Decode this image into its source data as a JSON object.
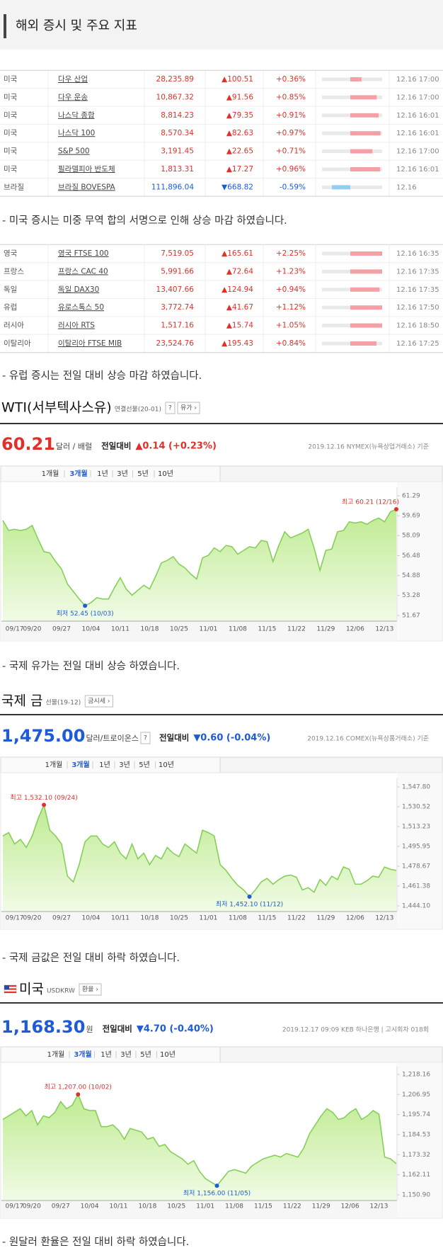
{
  "header": {
    "title": "해외 증시 및 주요 지표"
  },
  "tables": [
    {
      "rows": [
        {
          "country": "미국",
          "name": "다우 산업",
          "value": "28,235.89",
          "change": "▲100.51",
          "pct": "+0.36%",
          "time": "12.16 17:00"
        },
        {
          "country": "미국",
          "name": "다우 운송",
          "value": "10,867.32",
          "change": "▲91.56",
          "pct": "+0.85%",
          "time": "12.16 17:00"
        },
        {
          "country": "미국",
          "name": "나스닥 종합",
          "value": "8,814.23",
          "change": "▲79.35",
          "pct": "+0.91%",
          "time": "12.16 16:01"
        },
        {
          "country": "미국",
          "name": "나스닥 100",
          "value": "8,570.34",
          "change": "▲82.63",
          "pct": "+0.97%",
          "time": "12.16 16:01"
        },
        {
          "country": "미국",
          "name": "S&P 500",
          "value": "3,191.45",
          "change": "▲22.65",
          "pct": "+0.71%",
          "time": "12.16 17:00"
        },
        {
          "country": "미국",
          "name": "필라델피아 반도체",
          "value": "1,813.31",
          "change": "▲17.27",
          "pct": "+0.96%",
          "time": "12.16 16:01"
        },
        {
          "country": "브라질",
          "name": "브라질 BOVESPA",
          "value": "111,896.04",
          "change": "▼668.82",
          "pct": "-0.59%",
          "time": "12.16"
        }
      ]
    },
    {
      "rows": [
        {
          "country": "영국",
          "name": "영국 FTSE 100",
          "value": "7,519.05",
          "change": "▲165.61",
          "pct": "+2.25%",
          "time": "12.16 16:35"
        },
        {
          "country": "프랑스",
          "name": "프랑스 CAC 40",
          "value": "5,991.66",
          "change": "▲72.64",
          "pct": "+1.23%",
          "time": "12.16 17:35"
        },
        {
          "country": "독일",
          "name": "독일 DAX30",
          "value": "13,407.66",
          "change": "▲124.94",
          "pct": "+0.94%",
          "time": "12.16 17:35"
        },
        {
          "country": "유럽",
          "name": "유로스톡스 50",
          "value": "3,772.74",
          "change": "▲41.67",
          "pct": "+1.12%",
          "time": "12.16 17:50"
        },
        {
          "country": "러시아",
          "name": "러시아 RTS",
          "value": "1,517.16",
          "change": "▲15.74",
          "pct": "+1.05%",
          "time": "12.16 18:50"
        },
        {
          "country": "이탈리아",
          "name": "이탈리아 FTSE MIB",
          "value": "23,524.76",
          "change": "▲195.43",
          "pct": "+0.84%",
          "time": "12.16 17:25"
        }
      ]
    }
  ],
  "notes": [
    "- 미국 증시는 미중 무역 합의 서명으로 인해 상승 마감 하였습니다.",
    "- 유럽 증시는 전일 대비 상승 마감 하였습니다.",
    "- 국제 유가는 전일 대비 상승 하였습니다.",
    "- 국제 금값은 전일 대비 하락 하였습니다.",
    "- 원달러 환율은 전일 대비 하락 하였습니다."
  ],
  "charts": [
    {
      "type": "line",
      "title": "WTI(서부텍사스유)",
      "subtitle": "연결선물(20-01)",
      "help": "?",
      "button": "유가 ›",
      "price": "60.21",
      "unit": "달러 / 배럴",
      "change_label": "전일대비",
      "change": "▲0.14 (+0.23%)",
      "price_color": "#e0302a",
      "source": "2019.12.16 NYMEX(뉴욕상업거래소) 기준",
      "periods": [
        "1개월",
        "3개월",
        "1년",
        "3년",
        "5년",
        "10년"
      ],
      "selected_period": 1,
      "high": "최고 60.21 (12/16)",
      "low": "최저 52.45 (10/03)",
      "color": "#86cf5a",
      "categories": [
        null,
        null,
        "09/17",
        null,
        null,
        "09/20",
        null,
        null,
        null,
        null,
        "09/27",
        null,
        null,
        null,
        null,
        "10/04",
        null,
        null,
        null,
        null,
        "10/11",
        null,
        null,
        null,
        null,
        "10/18",
        null,
        null,
        null,
        null,
        "10/25",
        null,
        null,
        null,
        null,
        "11/01",
        null,
        null,
        null,
        null,
        "11/08",
        null,
        null,
        null,
        null,
        "11/15",
        null,
        null,
        null,
        null,
        "11/22",
        null,
        null,
        null,
        null,
        "11/29",
        null,
        null,
        null,
        null,
        "12/06",
        null,
        null,
        null,
        null,
        "12/13",
        null,
        null
      ],
      "values": [
        59.3,
        58.5,
        58.6,
        58.5,
        58.6,
        58.9,
        57.8,
        56.8,
        56.7,
        56.0,
        55.4,
        54.2,
        53.6,
        53.0,
        52.45,
        52.7,
        53.1,
        53.0,
        53.0,
        53.9,
        54.7,
        53.8,
        53.3,
        53.7,
        54.1,
        53.8,
        54.8,
        55.9,
        56.1,
        56.4,
        55.8,
        55.5,
        55.0,
        54.6,
        56.3,
        56.5,
        57.1,
        56.8,
        57.3,
        57.2,
        56.6,
        56.9,
        57.2,
        57.1,
        57.7,
        57.6,
        56.0,
        57.3,
        58.4,
        57.9,
        58.1,
        58.3,
        58.6,
        57.1,
        55.3,
        56.9,
        57.0,
        58.4,
        58.5,
        59.2,
        59.1,
        59.2,
        59.0,
        59.3,
        59.5,
        59.2,
        60.0,
        60.21
      ],
      "ylim": [
        51.67,
        61.29
      ],
      "yticks": [
        61.29,
        59.69,
        58.09,
        56.48,
        54.88,
        53.28,
        51.67
      ]
    },
    {
      "type": "line",
      "title": "국제 금",
      "subtitle": "선물(19-12)",
      "button": "금시세 ›",
      "price": "1,475.00",
      "unit": "달러/트로이온스",
      "unit_help": "?",
      "change_label": "전일대비",
      "change": "▼0.60 (-0.04%)",
      "price_color": "#1d5bd8",
      "source": "2019.12.16 COMEX(뉴욕상품거래소) 기준",
      "periods": [
        "1개월",
        "3개월",
        "1년",
        "3년",
        "5년",
        "10년"
      ],
      "selected_period": 1,
      "high": "최고 1,532.10 (09/24)",
      "low": "최저 1,452.10 (11/12)",
      "color": "#86cf5a",
      "categories": [
        null,
        null,
        "09/17",
        null,
        null,
        "09/20",
        null,
        null,
        null,
        null,
        "09/27",
        null,
        null,
        null,
        null,
        "10/04",
        null,
        null,
        null,
        null,
        "10/11",
        null,
        null,
        null,
        null,
        "10/18",
        null,
        null,
        null,
        null,
        "10/25",
        null,
        null,
        null,
        null,
        "11/01",
        null,
        null,
        null,
        null,
        "11/08",
        null,
        null,
        null,
        null,
        "11/15",
        null,
        null,
        null,
        null,
        "11/22",
        null,
        null,
        null,
        null,
        "11/29",
        null,
        null,
        null,
        null,
        "12/06",
        null,
        null,
        null,
        null,
        "12/13",
        null,
        null
      ],
      "values": [
        1505,
        1508,
        1498,
        1502,
        1495,
        1505,
        1520,
        1532.1,
        1510,
        1505,
        1498,
        1470,
        1465,
        1480,
        1500,
        1505,
        1505,
        1498,
        1495,
        1500,
        1490,
        1485,
        1498,
        1485,
        1490,
        1480,
        1488,
        1485,
        1495,
        1490,
        1487,
        1498,
        1494,
        1490,
        1510,
        1508,
        1505,
        1480,
        1475,
        1468,
        1462,
        1458,
        1452.1,
        1458,
        1465,
        1468,
        1463,
        1467,
        1470,
        1471,
        1469,
        1458,
        1460,
        1456,
        1467,
        1462,
        1470,
        1467,
        1478,
        1476,
        1463,
        1463,
        1466,
        1470,
        1469,
        1478,
        1476,
        1475
      ],
      "ylim": [
        1444.1,
        1547.8
      ],
      "yticks": [
        {
          "value": 1547.8,
          "label": "1,547.80"
        },
        {
          "value": 1530.52,
          "label": "1,530.52"
        },
        {
          "value": 1513.23,
          "label": "1,513.23"
        },
        {
          "value": 1495.95,
          "label": "1,495.95"
        },
        {
          "value": 1478.67,
          "label": "1,478.67"
        },
        {
          "value": 1461.38,
          "label": "1,461.38"
        },
        {
          "value": 1444.1,
          "label": "1,444.10"
        }
      ]
    },
    {
      "type": "line",
      "title": "미국",
      "subtitle": "USDKRW",
      "button": "환율 ›",
      "flag": true,
      "price": "1,168.30",
      "unit": "원",
      "change_label": "전일대비",
      "change": "▼4.70 (-0.40%)",
      "price_color": "#1d5bd8",
      "source": "2019.12.17 09:09 KEB 하나은행 | 고시회차 018회",
      "periods": [
        "1개월",
        "3개월",
        "1년",
        "3년",
        "5년",
        "10년"
      ],
      "selected_period": 1,
      "high": "최고 1,207.00 (10/02)",
      "low": "최저 1,156.00 (11/05)",
      "color": "#86cf5a",
      "categories": [
        null,
        null,
        "09/17",
        null,
        null,
        "09/20",
        null,
        null,
        null,
        null,
        "09/27",
        null,
        null,
        null,
        null,
        "10/04",
        null,
        null,
        null,
        null,
        "10/11",
        null,
        null,
        null,
        null,
        "10/18",
        null,
        null,
        null,
        null,
        "10/25",
        null,
        null,
        null,
        null,
        "11/01",
        null,
        null,
        null,
        null,
        "11/08",
        null,
        null,
        null,
        null,
        "11/15",
        null,
        null,
        null,
        null,
        "11/22",
        null,
        null,
        null,
        null,
        "11/29",
        null,
        null,
        null,
        null,
        "12/06",
        null,
        null,
        null,
        null,
        "12/13",
        null,
        null,
        null
      ],
      "values": [
        1193,
        1195,
        1197,
        1199,
        1195,
        1198,
        1190,
        1195,
        1194,
        1197,
        1203,
        1199,
        1201,
        1207,
        1199,
        1198,
        1198,
        1189,
        1189,
        1190,
        1187,
        1182,
        1188,
        1187,
        1186,
        1182,
        1183,
        1178,
        1179,
        1175,
        1173,
        1171,
        1168,
        1170,
        1164,
        1160,
        1158,
        1156,
        1160,
        1164,
        1165,
        1164,
        1163,
        1167,
        1169,
        1171,
        1172,
        1173,
        1172,
        1174,
        1173,
        1172,
        1177,
        1185,
        1190,
        1195,
        1199,
        1197,
        1193,
        1194,
        1197,
        1199,
        1193,
        1195,
        1198,
        1196,
        1172,
        1171,
        1168.3
      ],
      "ylim": [
        1150.9,
        1218.16
      ],
      "yticks": [
        {
          "value": 1218.16,
          "label": "1,218.16"
        },
        {
          "value": 1206.95,
          "label": "1,206.95"
        },
        {
          "value": 1195.74,
          "label": "1,195.74"
        },
        {
          "value": 1184.53,
          "label": "1,184.53"
        },
        {
          "value": 1173.32,
          "label": "1,173.32"
        },
        {
          "value": 1162.11,
          "label": "1,162.11"
        },
        {
          "value": 1150.9,
          "label": "1,150.90"
        }
      ]
    }
  ]
}
